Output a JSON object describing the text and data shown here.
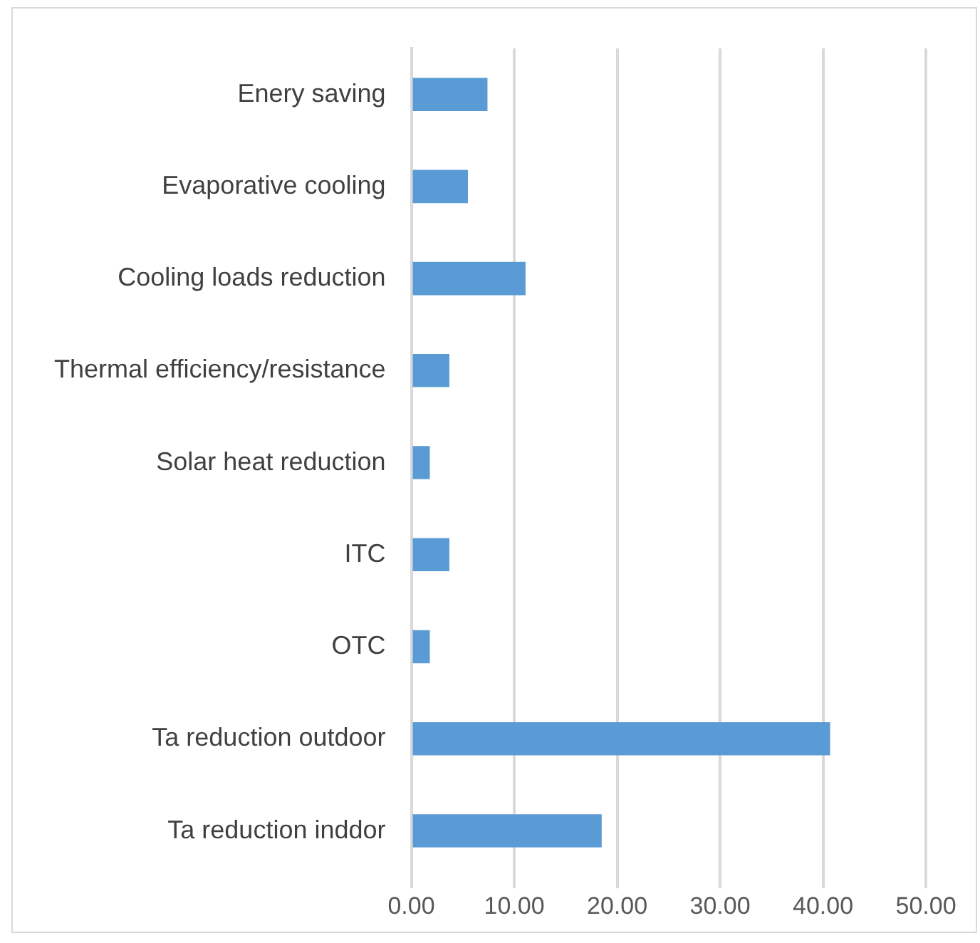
{
  "chart_data": {
    "type": "bar",
    "orientation": "horizontal",
    "categories": [
      "Enery saving",
      "Evaporative cooling",
      "Cooling loads reduction",
      "Thermal efficiency/resistance",
      "Solar heat reduction",
      "ITC",
      "OTC",
      "Ta reduction outdoor",
      "Ta reduction inddor"
    ],
    "values": [
      7.4,
      5.5,
      11.1,
      3.7,
      1.8,
      3.7,
      1.8,
      40.7,
      18.5
    ],
    "color": "#5b9bd5",
    "xlim": [
      0,
      50
    ],
    "xticks": [
      {
        "value": 0,
        "label": "0.00"
      },
      {
        "value": 10,
        "label": "10.00"
      },
      {
        "value": 20,
        "label": "20.00"
      },
      {
        "value": 30,
        "label": "30.00"
      },
      {
        "value": 40,
        "label": "40.00"
      },
      {
        "value": 50,
        "label": "50.00"
      }
    ],
    "grid": "x",
    "legend": false
  }
}
